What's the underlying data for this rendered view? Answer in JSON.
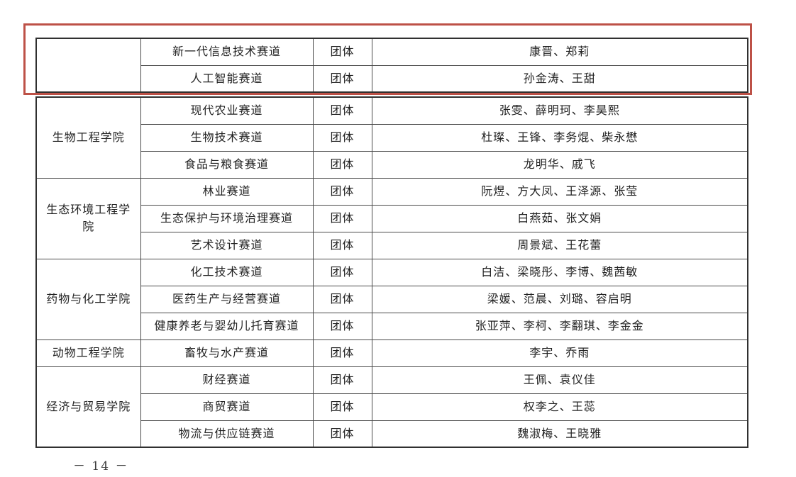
{
  "colors": {
    "annotation_red": "#bd5147",
    "table_border": "#303030",
    "text": "#222222"
  },
  "footer": {
    "page_number": "－ 14 －"
  },
  "table_top": {
    "rows": [
      {
        "college": "",
        "track": "新一代信息技术赛道",
        "type": "团体",
        "names": "康晋、郑莉"
      },
      {
        "college": "",
        "track": "人工智能赛道",
        "type": "团体",
        "names": "孙金涛、王甜"
      }
    ]
  },
  "table_main": {
    "groups": [
      {
        "college": "生物工程学院",
        "rows": [
          {
            "track": "现代农业赛道",
            "type": "团体",
            "names": "张雯、薛明珂、李昊熙"
          },
          {
            "track": "生物技术赛道",
            "type": "团体",
            "names": "杜璨、王锋、李务焜、柴永懋"
          },
          {
            "track": "食品与粮食赛道",
            "type": "团体",
            "names": "龙明华、戚飞"
          }
        ]
      },
      {
        "college": "生态环境工程学院",
        "rows": [
          {
            "track": "林业赛道",
            "type": "团体",
            "names": "阮煜、方大凤、王泽源、张莹"
          },
          {
            "track": "生态保护与环境治理赛道",
            "type": "团体",
            "names": "白燕茹、张文娟"
          },
          {
            "track": "艺术设计赛道",
            "type": "团体",
            "names": "周景斌、王花蕾"
          }
        ]
      },
      {
        "college": "药物与化工学院",
        "rows": [
          {
            "track": "化工技术赛道",
            "type": "团体",
            "names": "白洁、梁晓彤、李博、魏茜敏"
          },
          {
            "track": "医药生产与经营赛道",
            "type": "团体",
            "names": "梁媛、范晨、刘璐、容启明"
          },
          {
            "track": "健康养老与婴幼儿托育赛道",
            "type": "团体",
            "names": "张亚萍、李柯、李翻琪、李金金"
          }
        ]
      },
      {
        "college": "动物工程学院",
        "rows": [
          {
            "track": "畜牧与水产赛道",
            "type": "团体",
            "names": "李宇、乔雨"
          }
        ]
      },
      {
        "college": "经济与贸易学院",
        "rows": [
          {
            "track": "财经赛道",
            "type": "团体",
            "names": "王佩、袁仪佳"
          },
          {
            "track": "商贸赛道",
            "type": "团体",
            "names": "权李之、王蕊"
          },
          {
            "track": "物流与供应链赛道",
            "type": "团体",
            "names": "魏淑梅、王晓雅"
          }
        ]
      }
    ]
  }
}
